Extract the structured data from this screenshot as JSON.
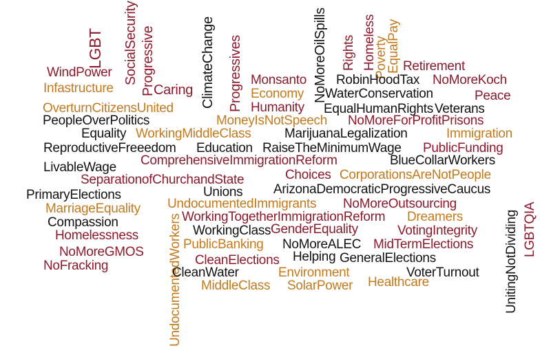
{
  "palette": {
    "dark_red": "#8b1a2c",
    "orange": "#c27a1e",
    "brown": "#7a3a1a",
    "black": "#111111"
  },
  "words": [
    "LGBT",
    "WindPower",
    "Infastructure",
    "SocialSecurity",
    "Progressive",
    "Caring",
    "ClimateChange",
    "Progressives",
    "OverturnCitizensUnited",
    "Monsanto",
    "Economy",
    "Humanity",
    "NoMoreOilSpills",
    "Rights",
    "Homeless",
    "Poverty",
    "EqualPay",
    "Retirement",
    "NoMoreKoch",
    "RobinHoodTax",
    "WaterConservation",
    "Peace",
    "EqualHumanRights",
    "Veterans",
    "PeopleOverPolitics",
    "MoneyIsNotSpeech",
    "NoMoreForProfitPrisons",
    "Equality",
    "WorkingMiddleClass",
    "MarijuanaLegalization",
    "Immigration",
    "ReproductiveFreeedom",
    "Education",
    "RaiseTheMinimumWage",
    "PublicFunding",
    "LivableWage",
    "ComprehensiveImmigrationReform",
    "BlueCollarWorkers",
    "SeparationofChurchandState",
    "Choices",
    "CorporationsAreNotPeople",
    "PrimaryElections",
    "Unions",
    "ArizonaDemocraticProgressiveCaucus",
    "MarriageEquality",
    "UndocumentedImmigrants",
    "NoMoreOutsourcing",
    "Compassion",
    "UndocumentedWorkers",
    "WorkingTogetherImmigrationReform",
    "Dreamers",
    "UnitingNotDividing",
    "LGBTQIA",
    "Homelessness",
    "WorkingClass",
    "GenderEquality",
    "VotingIntegrity",
    "NoMoreGMOS",
    "PublicBanking",
    "NoMoreALEC",
    "MidTermElections",
    "NoFracking",
    "CleanElections",
    "Helping",
    "GeneralElections",
    "CleanWater",
    "Environment",
    "VoterTurnout",
    "MiddleClass",
    "SolarPower",
    "Healthcare"
  ]
}
